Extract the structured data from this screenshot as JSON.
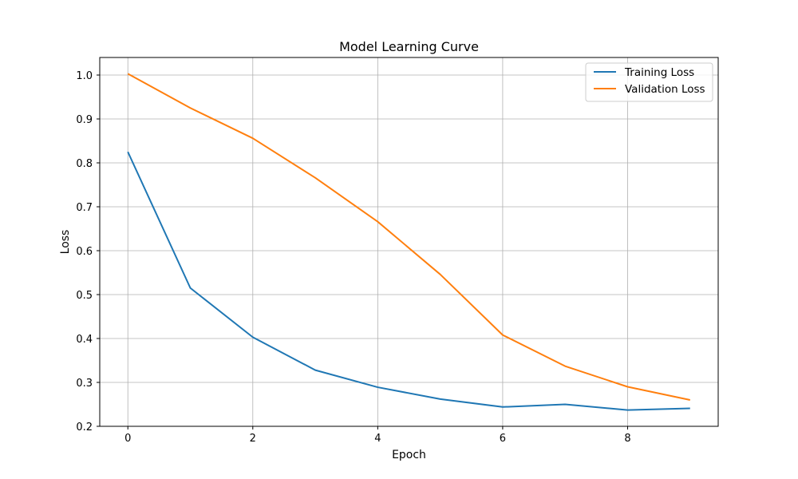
{
  "chart_data": {
    "type": "line",
    "title": "Model Learning Curve",
    "xlabel": "Epoch",
    "ylabel": "Loss",
    "x": [
      0,
      1,
      2,
      3,
      4,
      5,
      6,
      7,
      8,
      9
    ],
    "xlim": [
      -0.45,
      9.45
    ],
    "ylim": [
      0.2,
      1.04
    ],
    "xticks": [
      0,
      2,
      4,
      6,
      8
    ],
    "yticks": [
      0.2,
      0.3,
      0.4,
      0.5,
      0.6,
      0.7,
      0.8,
      0.9,
      1.0
    ],
    "ytick_labels": [
      "0.2",
      "0.3",
      "0.4",
      "0.5",
      "0.6",
      "0.7",
      "0.8",
      "0.9",
      "1.0"
    ],
    "grid": true,
    "legend_position": "top-right",
    "series": [
      {
        "name": "Training Loss",
        "color": "#1f77b4",
        "values": [
          0.825,
          0.515,
          0.403,
          0.328,
          0.289,
          0.262,
          0.244,
          0.25,
          0.237,
          0.241
        ]
      },
      {
        "name": "Validation Loss",
        "color": "#ff7f0e",
        "values": [
          1.003,
          0.925,
          0.856,
          0.766,
          0.666,
          0.546,
          0.408,
          0.337,
          0.29,
          0.26
        ]
      }
    ]
  }
}
